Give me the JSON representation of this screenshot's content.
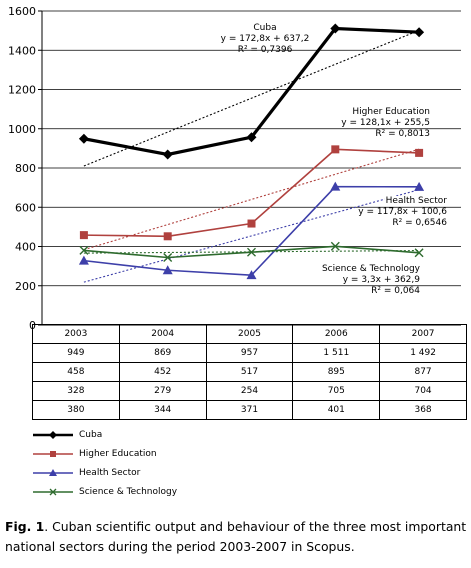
{
  "chart_data": {
    "type": "line",
    "categories": [
      "2003",
      "2004",
      "2005",
      "2006",
      "2007"
    ],
    "ylim": [
      0,
      1600
    ],
    "yticks": [
      0,
      200,
      400,
      600,
      800,
      1000,
      1200,
      1400,
      1600
    ],
    "grid": true,
    "legend_position": "bottom-left",
    "series": [
      {
        "name": "Cuba",
        "values": [
          949,
          869,
          957,
          1511,
          1492
        ],
        "color": "#000000",
        "marker": "diamond",
        "trend": {
          "slope": 172.8,
          "intercept": 637.2
        }
      },
      {
        "name": "Higher Education",
        "values": [
          458,
          452,
          517,
          895,
          877
        ],
        "color": "#b0413e",
        "marker": "square",
        "trend": {
          "slope": 128.1,
          "intercept": 255.5
        }
      },
      {
        "name": "Health Sector",
        "values": [
          328,
          279,
          254,
          705,
          704
        ],
        "color": "#3d3fa9",
        "marker": "triangle",
        "trend": {
          "slope": 117.8,
          "intercept": 100.6
        }
      },
      {
        "name": "Science & Technology",
        "values": [
          380,
          344,
          371,
          401,
          368
        ],
        "color": "#2e6b2e",
        "marker": "x",
        "trend": {
          "slope": 3.3,
          "intercept": 362.9
        }
      }
    ],
    "table_values": [
      [
        "949",
        "869",
        "957",
        "1 511",
        "1 492"
      ],
      [
        "458",
        "452",
        "517",
        "895",
        "877"
      ],
      [
        "328",
        "279",
        "254",
        "705",
        "704"
      ],
      [
        "380",
        "344",
        "371",
        "401",
        "368"
      ]
    ],
    "annotations": [
      {
        "series": "Cuba",
        "lines": [
          "Cuba",
          "y = 172,8x + 637,2",
          "R² = 0,7396"
        ]
      },
      {
        "series": "Higher Education",
        "lines": [
          "Higher Education",
          "y = 128,1x + 255,5",
          "R² = 0,8013"
        ]
      },
      {
        "series": "Health Sector",
        "lines": [
          "Health Sector",
          "y = 117,8x + 100,6",
          "R² = 0,6546"
        ]
      },
      {
        "series": "Science & Technology",
        "lines": [
          "Science & Technology",
          "y = 3,3x + 362,9",
          "R² = 0,064"
        ]
      }
    ]
  },
  "caption": {
    "label": "Fig. 1",
    "text": ". Cuban scientific output and behaviour of the three most important national sectors during the period 2003-2007 in Scopus."
  }
}
